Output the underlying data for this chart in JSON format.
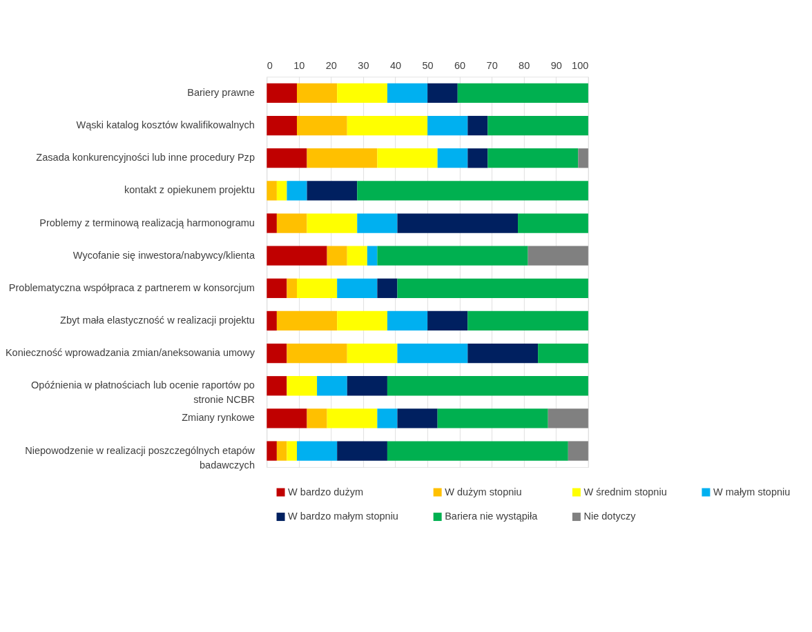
{
  "chart_data": {
    "type": "bar",
    "orientation": "horizontal",
    "stacked": true,
    "grid": "x",
    "legend": "bottom",
    "xlim": [
      0,
      100
    ],
    "xticks": [
      0,
      10,
      20,
      30,
      40,
      50,
      60,
      70,
      80,
      90,
      100
    ],
    "categories": [
      "Bariery prawne",
      "Wąski katalog kosztów kwalifikowalnych",
      "Zasada konkurencyjności lub inne procedury Pzp",
      "kontakt z opiekunem projektu",
      "Problemy z terminową realizacją harmonogramu",
      "Wycofanie się inwestora/nabywcy/klienta",
      "Problematyczna współpraca z partnerem w konsorcjum",
      "Zbyt mała elastyczność w realizacji projektu",
      "Konieczność wprowadzania zmian/aneksowania umowy",
      "Opóźnienia w płatnościach lub ocenie raportów po stronie NCBR",
      "Zmiany rynkowe",
      "Niepowodzenie w realizacji poszczególnych etapów badawczych"
    ],
    "series": [
      {
        "name": "W bardzo dużym",
        "color": "#c00000",
        "values": [
          9.375,
          9.375,
          12.5,
          0,
          3.125,
          18.75,
          6.25,
          3.125,
          6.25,
          6.25,
          12.5,
          3.125
        ]
      },
      {
        "name": "W dużym stopniu",
        "color": "#ffc000",
        "values": [
          12.5,
          15.625,
          21.875,
          3.125,
          9.375,
          6.25,
          3.125,
          18.75,
          18.75,
          0,
          6.25,
          3.125
        ]
      },
      {
        "name": "W średnim stopniu",
        "color": "#ffff00",
        "values": [
          15.625,
          25,
          18.75,
          3.125,
          15.625,
          6.25,
          12.5,
          15.625,
          15.625,
          9.375,
          15.625,
          3.125
        ]
      },
      {
        "name": "W małym stopniu",
        "color": "#00b0f0",
        "values": [
          12.5,
          12.5,
          9.375,
          6.25,
          12.5,
          3.125,
          12.5,
          12.5,
          21.875,
          9.375,
          6.25,
          12.5
        ]
      },
      {
        "name": "W bardzo małym stopniu",
        "color": "#002060",
        "values": [
          9.375,
          6.25,
          6.25,
          15.625,
          37.5,
          0,
          6.25,
          12.5,
          21.875,
          12.5,
          12.5,
          15.625
        ]
      },
      {
        "name": "Bariera nie wystąpiła",
        "color": "#00b050",
        "values": [
          40.625,
          31.25,
          28.125,
          71.875,
          21.875,
          46.875,
          59.375,
          37.5,
          15.625,
          62.5,
          34.375,
          56.25
        ]
      },
      {
        "name": "Nie dotyczy",
        "color": "#808080",
        "values": [
          0,
          0,
          3.125,
          0,
          0,
          18.75,
          0,
          0,
          0,
          0,
          12.5,
          6.25
        ]
      }
    ]
  }
}
